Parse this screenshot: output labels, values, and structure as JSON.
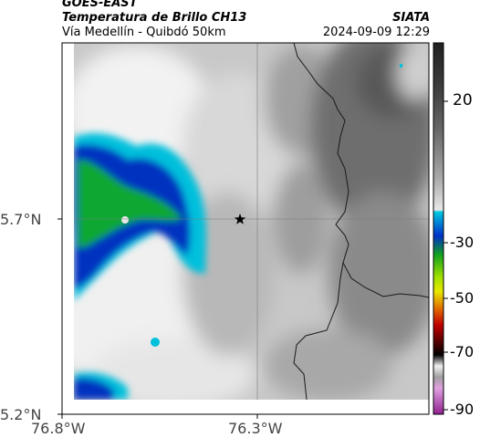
{
  "header": {
    "satellite": "GOES-EAST",
    "product": "Temperatura de Brillo CH13",
    "region": "Vía Medellín - Quibdó 50km",
    "org": "SIATA",
    "datetime": "2024-09-09 12:29"
  },
  "map": {
    "x_ticks": [
      "76.8°W",
      "76.3°W"
    ],
    "y_ticks": [
      "5.7°N",
      "5.2°N"
    ],
    "marker": "star",
    "colorbar": {
      "tick_labels": [
        "20",
        "-30",
        "-50",
        "-70",
        "-90"
      ],
      "colors": {
        "warm_gray": "#d0d0d0",
        "dark_gray": "#303030",
        "cyan": "#00b8d8",
        "blue": "#0030c8",
        "green": "#10b020",
        "yellow": "#e0e000",
        "red": "#e02000",
        "magenta": "#b020b0"
      }
    }
  }
}
